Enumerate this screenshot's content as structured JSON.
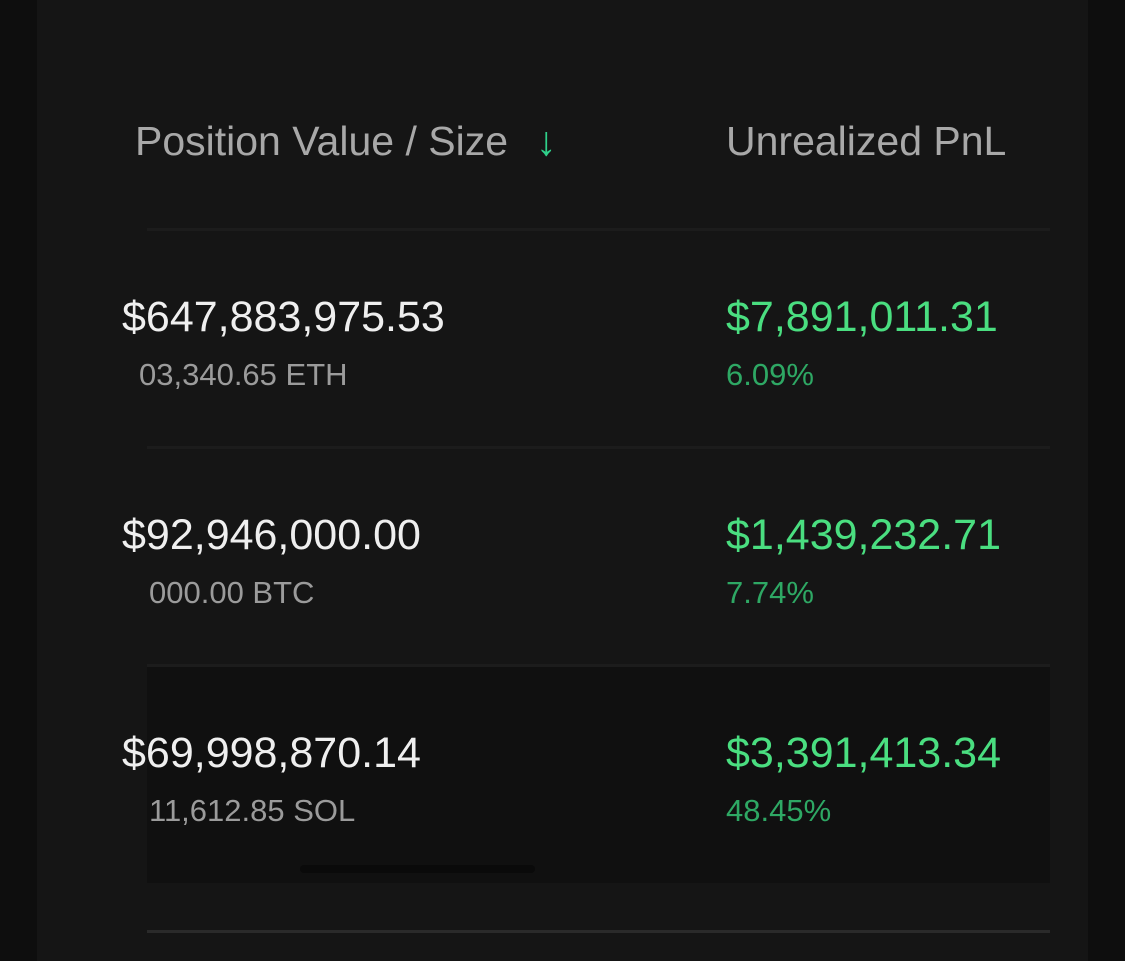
{
  "header": {
    "position_col": "Position Value / Size",
    "sort_icon": "arrow-down-icon",
    "sort_glyph": "↓",
    "pnl_col": "Unrealized PnL"
  },
  "rows": [
    {
      "value": "$647,883,975.53",
      "size": "03,340.65 ETH",
      "pnl": "$7,891,011.31",
      "pnl_pct": "6.09%"
    },
    {
      "value": "$92,946,000.00",
      "size": "000.00 BTC",
      "pnl": "$1,439,232.71",
      "pnl_pct": "7.74%"
    },
    {
      "value": "$69,998,870.14",
      "size": "11,612.85 SOL",
      "pnl": "$3,391,413.34",
      "pnl_pct": "48.45%"
    }
  ],
  "colors": {
    "positive": "#4ade80",
    "accent": "#2fd08a",
    "background": "#151515"
  }
}
